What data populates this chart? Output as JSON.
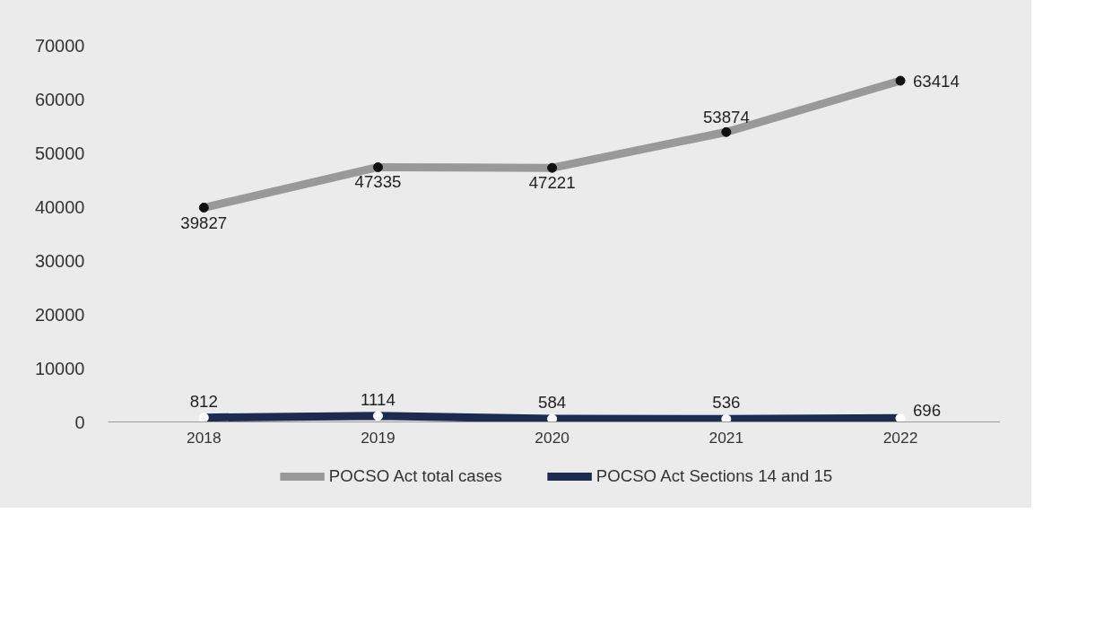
{
  "chart_data": {
    "type": "line",
    "categories": [
      "2018",
      "2019",
      "2020",
      "2021",
      "2022"
    ],
    "series": [
      {
        "name": "POCSO Act total cases",
        "color": "#999999",
        "values": [
          39827,
          47335,
          47221,
          53874,
          63414
        ]
      },
      {
        "name": "POCSO Act Sections 14 and 15",
        "color": "#1c2b4f",
        "values": [
          812,
          1114,
          584,
          536,
          696
        ]
      }
    ],
    "ylim": [
      0,
      70000
    ],
    "yticks": [
      0,
      10000,
      20000,
      30000,
      40000,
      50000,
      60000,
      70000
    ],
    "data_labels": true,
    "marker": "circle",
    "grid": false,
    "legend": "bottom",
    "line_style": "solid"
  }
}
